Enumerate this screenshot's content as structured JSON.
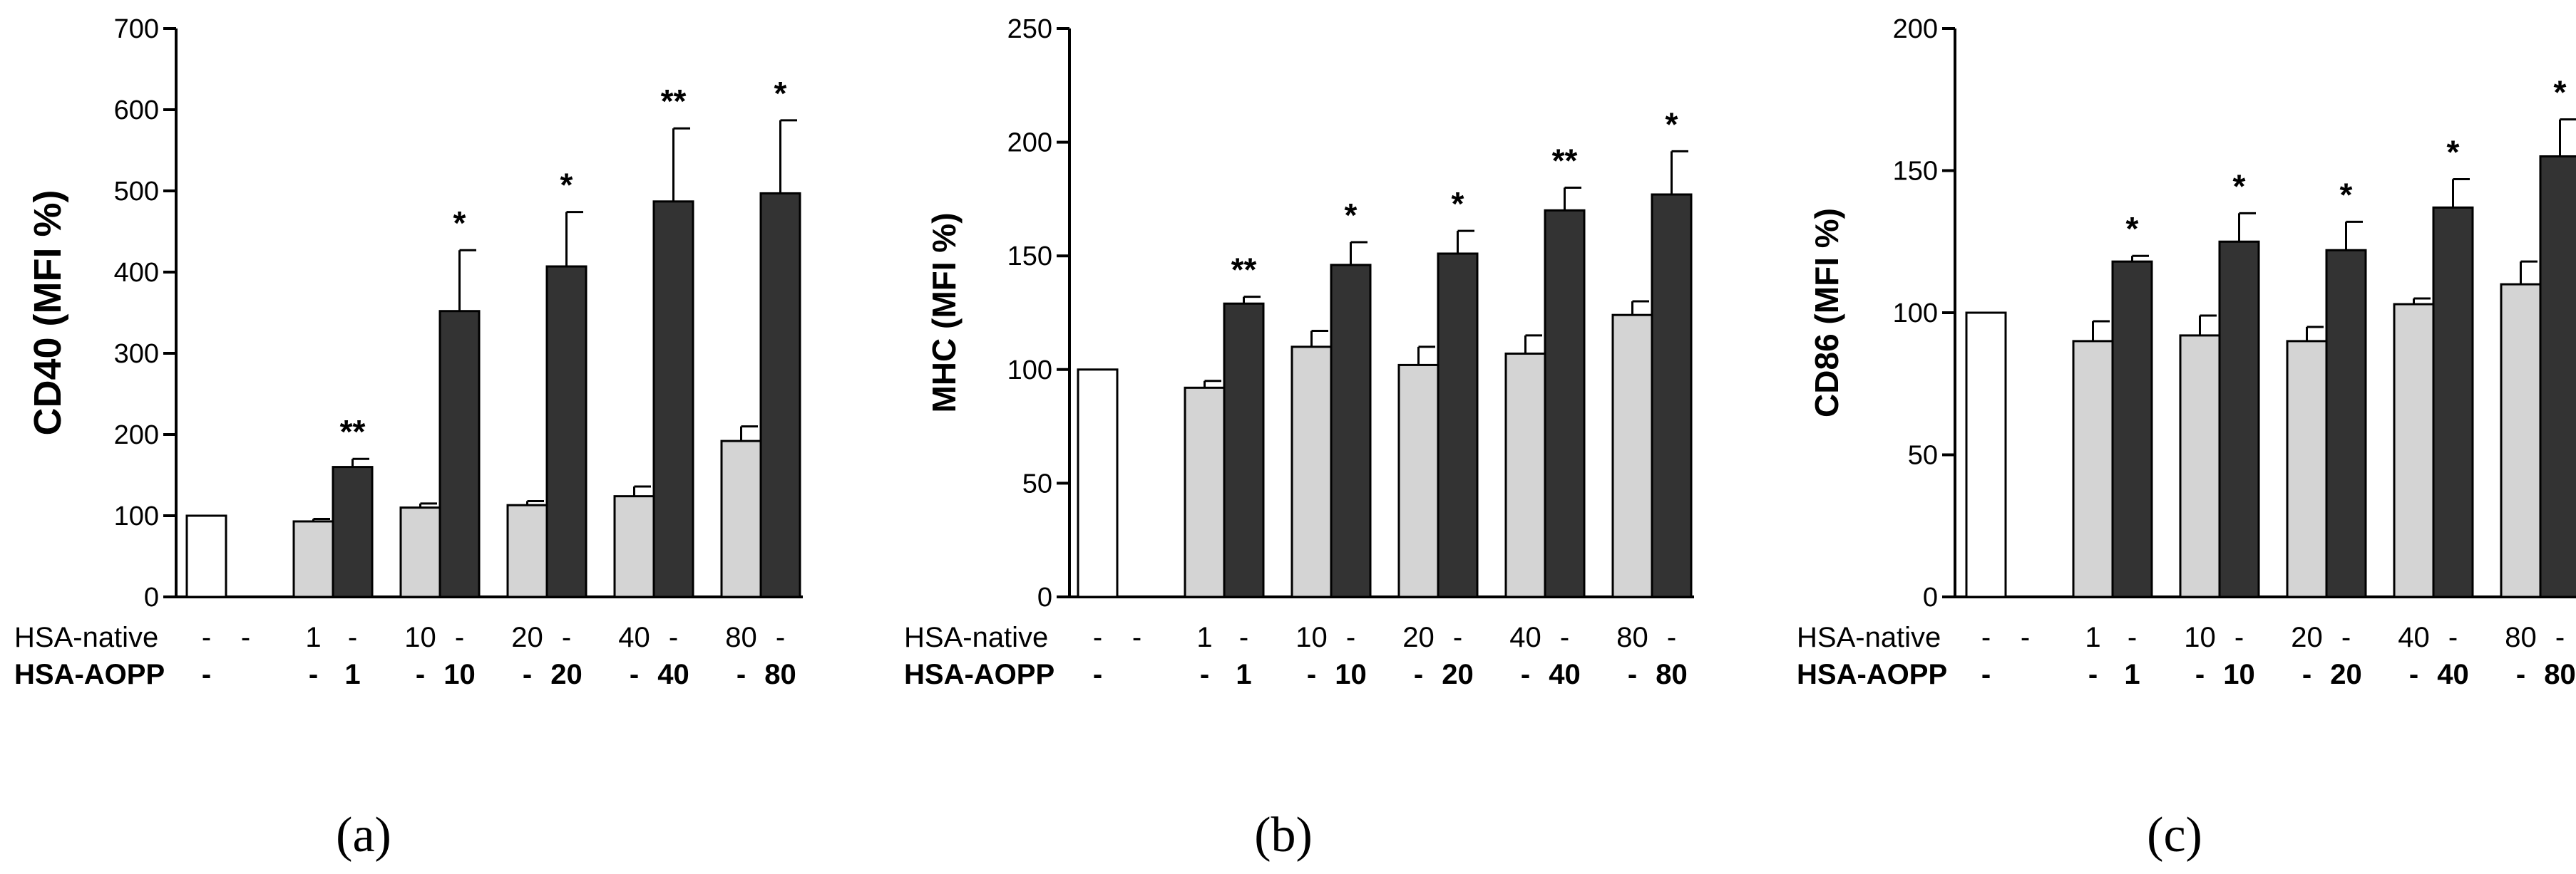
{
  "chart_data": [
    {
      "type": "bar",
      "panel_label": "(a)",
      "ylabel": "CD40 (MFI %)",
      "ylim": [
        0,
        700
      ],
      "yticks": [
        0,
        100,
        200,
        300,
        400,
        500,
        600,
        700
      ],
      "groups": [
        {
          "native": "-",
          "aopp": "-",
          "bars": [
            {
              "kind": "control",
              "value": 100,
              "err": 0,
              "sig": ""
            }
          ]
        },
        {
          "native": "1",
          "aopp": "1",
          "bars": [
            {
              "kind": "native",
              "value": 93,
              "err": 3,
              "sig": ""
            },
            {
              "kind": "aopp",
              "value": 160,
              "err": 10,
              "sig": "**"
            }
          ]
        },
        {
          "native": "10",
          "aopp": "10",
          "bars": [
            {
              "kind": "native",
              "value": 110,
              "err": 5,
              "sig": ""
            },
            {
              "kind": "aopp",
              "value": 352,
              "err": 75,
              "sig": "*"
            }
          ]
        },
        {
          "native": "20",
          "aopp": "20",
          "bars": [
            {
              "kind": "native",
              "value": 113,
              "err": 5,
              "sig": ""
            },
            {
              "kind": "aopp",
              "value": 407,
              "err": 67,
              "sig": "*"
            }
          ]
        },
        {
          "native": "40",
          "aopp": "40",
          "bars": [
            {
              "kind": "native",
              "value": 124,
              "err": 12,
              "sig": ""
            },
            {
              "kind": "aopp",
              "value": 487,
              "err": 90,
              "sig": "**"
            }
          ]
        },
        {
          "native": "80",
          "aopp": "80",
          "bars": [
            {
              "kind": "native",
              "value": 192,
              "err": 18,
              "sig": ""
            },
            {
              "kind": "aopp",
              "value": 497,
              "err": 90,
              "sig": "*"
            }
          ]
        }
      ]
    },
    {
      "type": "bar",
      "panel_label": "(b)",
      "ylabel": "MHC (MFI %)",
      "ylim": [
        0,
        250
      ],
      "yticks": [
        0,
        50,
        100,
        150,
        200,
        250
      ],
      "groups": [
        {
          "native": "-",
          "aopp": "-",
          "bars": [
            {
              "kind": "control",
              "value": 100,
              "err": 0,
              "sig": ""
            }
          ]
        },
        {
          "native": "1",
          "aopp": "1",
          "bars": [
            {
              "kind": "native",
              "value": 92,
              "err": 3,
              "sig": ""
            },
            {
              "kind": "aopp",
              "value": 129,
              "err": 3,
              "sig": "**"
            }
          ]
        },
        {
          "native": "10",
          "aopp": "10",
          "bars": [
            {
              "kind": "native",
              "value": 110,
              "err": 7,
              "sig": ""
            },
            {
              "kind": "aopp",
              "value": 146,
              "err": 10,
              "sig": "*"
            }
          ]
        },
        {
          "native": "20",
          "aopp": "20",
          "bars": [
            {
              "kind": "native",
              "value": 102,
              "err": 8,
              "sig": ""
            },
            {
              "kind": "aopp",
              "value": 151,
              "err": 10,
              "sig": "*"
            }
          ]
        },
        {
          "native": "40",
          "aopp": "40",
          "bars": [
            {
              "kind": "native",
              "value": 107,
              "err": 8,
              "sig": ""
            },
            {
              "kind": "aopp",
              "value": 170,
              "err": 10,
              "sig": "**"
            }
          ]
        },
        {
          "native": "80",
          "aopp": "80",
          "bars": [
            {
              "kind": "native",
              "value": 124,
              "err": 6,
              "sig": ""
            },
            {
              "kind": "aopp",
              "value": 177,
              "err": 19,
              "sig": "*"
            }
          ]
        }
      ]
    },
    {
      "type": "bar",
      "panel_label": "(c)",
      "ylabel": "CD86 (MFI %)",
      "ylim": [
        0,
        200
      ],
      "yticks": [
        0,
        50,
        100,
        150,
        200
      ],
      "groups": [
        {
          "native": "-",
          "aopp": "-",
          "bars": [
            {
              "kind": "control",
              "value": 100,
              "err": 0,
              "sig": ""
            }
          ]
        },
        {
          "native": "1",
          "aopp": "1",
          "bars": [
            {
              "kind": "native",
              "value": 90,
              "err": 7,
              "sig": ""
            },
            {
              "kind": "aopp",
              "value": 118,
              "err": 2,
              "sig": "*"
            }
          ]
        },
        {
          "native": "10",
          "aopp": "10",
          "bars": [
            {
              "kind": "native",
              "value": 92,
              "err": 7,
              "sig": ""
            },
            {
              "kind": "aopp",
              "value": 125,
              "err": 10,
              "sig": "*"
            }
          ]
        },
        {
          "native": "20",
          "aopp": "20",
          "bars": [
            {
              "kind": "native",
              "value": 90,
              "err": 5,
              "sig": ""
            },
            {
              "kind": "aopp",
              "value": 122,
              "err": 10,
              "sig": "*"
            }
          ]
        },
        {
          "native": "40",
          "aopp": "40",
          "bars": [
            {
              "kind": "native",
              "value": 103,
              "err": 2,
              "sig": ""
            },
            {
              "kind": "aopp",
              "value": 137,
              "err": 10,
              "sig": "*"
            }
          ]
        },
        {
          "native": "80",
          "aopp": "80",
          "bars": [
            {
              "kind": "native",
              "value": 110,
              "err": 8,
              "sig": ""
            },
            {
              "kind": "aopp",
              "value": 155,
              "err": 13,
              "sig": "*"
            }
          ]
        }
      ]
    }
  ],
  "row_labels": {
    "native": "HSA-native",
    "aopp": "HSA-AOPP"
  },
  "colors": {
    "control": "#ffffff",
    "native": "#d4d4d4",
    "aopp": "#333333",
    "axis": "#000000"
  }
}
